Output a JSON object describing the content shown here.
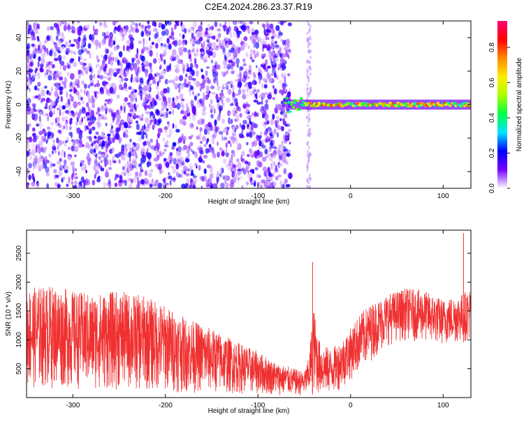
{
  "title": "C2E4.2024.286.23.37.R19",
  "chart_data": [
    {
      "type": "heatmap",
      "title": "C2E4.2024.286.23.37.R19",
      "xlabel": "Height of straight line (km)",
      "ylabel": "Frequency (Hz)",
      "xlim": [
        -350,
        130
      ],
      "ylim": [
        -50,
        50
      ],
      "x_ticks": [
        "-300",
        "-200",
        "-100",
        "0",
        "100"
      ],
      "x_tick_values": [
        -300,
        -200,
        -100,
        0,
        100
      ],
      "y_ticks": [
        "-40",
        "-20",
        "0",
        "20",
        "40"
      ],
      "y_tick_values": [
        -40,
        -20,
        0,
        20,
        40
      ],
      "noise_region_end_km": -65,
      "signal_start_km": -70,
      "signal_frequency_hz": 0,
      "colorbar": {
        "label": "Normalized spectral amplitude",
        "range": [
          0,
          0.95
        ],
        "ticks": [
          "0.0",
          "0.2",
          "0.4",
          "0.6",
          "0.8"
        ],
        "tick_values": [
          0.0,
          0.2,
          0.4,
          0.6,
          0.8
        ],
        "colormap": [
          "#ffffff",
          "#7700ff",
          "#0000ff",
          "#00e5ff",
          "#00ff44",
          "#aaff00",
          "#ffee00",
          "#ff8800",
          "#ff0000",
          "#ff0077"
        ]
      },
      "grid": false
    },
    {
      "type": "line",
      "xlabel": "Height of straight line (km)",
      "ylabel": "SNR (10 * v/v)",
      "xlim": [
        -350,
        130
      ],
      "ylim": [
        0,
        2900
      ],
      "x_ticks": [
        "-300",
        "-200",
        "-100",
        "0",
        "100"
      ],
      "x_tick_values": [
        -300,
        -200,
        -100,
        0,
        100
      ],
      "y_ticks": [
        "500",
        "1000",
        "1500",
        "2000",
        "2500"
      ],
      "y_tick_values": [
        500,
        1000,
        1500,
        2000,
        2500
      ],
      "color": "#f03030",
      "series": [
        {
          "x": [
            -350,
            -320,
            -300,
            -280,
            -250,
            -220,
            -200,
            -180,
            -150,
            -120,
            -100,
            -80,
            -60,
            -50,
            -45,
            -40,
            -35,
            -30,
            -20,
            -10,
            0,
            10,
            20,
            40,
            60,
            80,
            100,
            120,
            130
          ],
          "upper": [
            1900,
            1950,
            1850,
            1800,
            1850,
            1750,
            1600,
            1400,
            1200,
            950,
            800,
            600,
            500,
            450,
            700,
            1600,
            1050,
            900,
            850,
            1000,
            1200,
            1450,
            1600,
            1800,
            1900,
            1850,
            1700,
            1800,
            1900
          ],
          "lower": [
            150,
            150,
            150,
            120,
            120,
            100,
            90,
            80,
            70,
            60,
            50,
            40,
            30,
            30,
            30,
            60,
            50,
            40,
            60,
            150,
            300,
            450,
            600,
            900,
            1000,
            950,
            900,
            950,
            1000
          ],
          "spikes": [
            {
              "x": -41,
              "y": 2350
            },
            {
              "x": 122,
              "y": 2850
            }
          ]
        }
      ],
      "grid": false
    }
  ]
}
